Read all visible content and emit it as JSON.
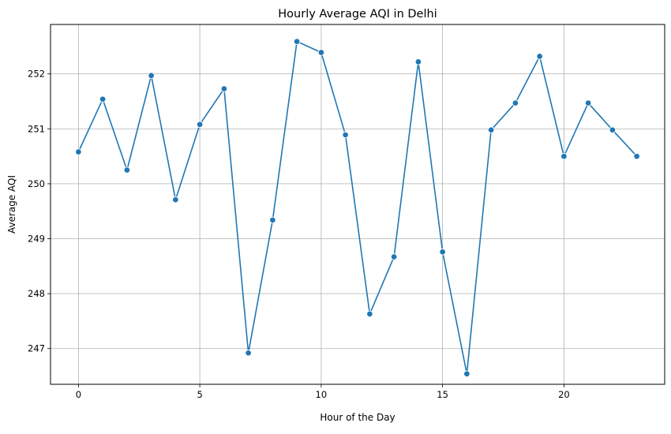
{
  "chart_data": {
    "type": "line",
    "title": "Hourly Average AQI in Delhi",
    "xlabel": "Hour of the Day",
    "ylabel": "Average AQI",
    "xlim": [
      -1.15,
      24.15
    ],
    "ylim": [
      246.35,
      252.9
    ],
    "x_ticks": [
      0,
      5,
      10,
      15,
      20
    ],
    "y_ticks": [
      247,
      248,
      249,
      250,
      251,
      252
    ],
    "grid": true,
    "line_color": "#1f77b4",
    "marker": "circle",
    "series": [
      {
        "x": [
          0,
          1,
          2,
          3,
          4,
          5,
          6,
          7,
          8,
          9,
          10,
          11,
          12,
          13,
          14,
          15,
          16,
          17,
          18,
          19,
          20,
          21,
          22,
          23
        ],
        "values": [
          250.58,
          251.54,
          250.25,
          251.97,
          249.71,
          251.08,
          251.73,
          246.92,
          249.34,
          252.59,
          252.39,
          250.89,
          247.63,
          248.67,
          252.22,
          248.76,
          246.54,
          250.98,
          251.47,
          252.32,
          250.5,
          251.47,
          250.98,
          250.5
        ]
      }
    ]
  }
}
